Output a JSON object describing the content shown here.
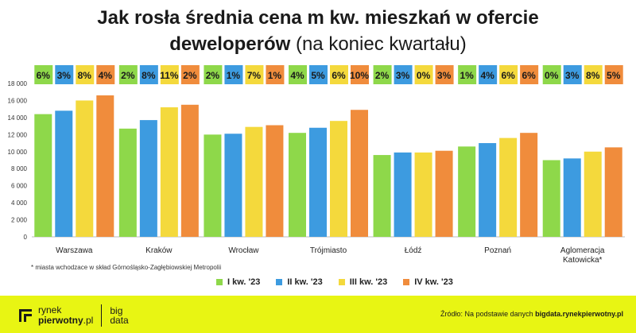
{
  "header": {
    "title_line1": "Jak rosła średnia cena m kw. mieszkań w ofercie",
    "title_line2_bold": "deweloperów",
    "title_line2_light": "(na koniec kwartału)"
  },
  "chart_data": {
    "type": "bar",
    "title": "Jak rosła średnia cena m kw. mieszkań w ofercie deweloperów (na koniec kwartału)",
    "categories": [
      "Warszawa",
      "Kraków",
      "Wrocław",
      "Trójmiasto",
      "Łódź",
      "Poznań",
      "Aglomeracja Katowicka*"
    ],
    "category_lines": [
      [
        "Warszawa"
      ],
      [
        "Kraków"
      ],
      [
        "Wrocław"
      ],
      [
        "Trójmiasto"
      ],
      [
        "Łódź"
      ],
      [
        "Poznań"
      ],
      [
        "Aglomeracja",
        "Katowicka*"
      ]
    ],
    "series": [
      {
        "name": "I kw. '23",
        "color": "#8ed84a",
        "values": [
          14400,
          12700,
          12000,
          12200,
          9600,
          10600,
          9000
        ]
      },
      {
        "name": "II kw. '23",
        "color": "#3d9be0",
        "values": [
          14800,
          13700,
          12100,
          12800,
          9900,
          11000,
          9200
        ]
      },
      {
        "name": "III kw. '23",
        "color": "#f4d93c",
        "values": [
          16000,
          15200,
          12900,
          13600,
          9900,
          11600,
          10000
        ]
      },
      {
        "name": "IV kw. '23",
        "color": "#f08c3c",
        "values": [
          16600,
          15500,
          13100,
          14900,
          10100,
          12200,
          10500
        ]
      }
    ],
    "growth_labels": [
      [
        "6%",
        "3%",
        "8%",
        "4%"
      ],
      [
        "2%",
        "8%",
        "11%",
        "2%"
      ],
      [
        "2%",
        "1%",
        "7%",
        "1%"
      ],
      [
        "4%",
        "5%",
        "6%",
        "10%"
      ],
      [
        "2%",
        "3%",
        "0%",
        "3%"
      ],
      [
        "1%",
        "4%",
        "6%",
        "6%"
      ],
      [
        "0%",
        "3%",
        "8%",
        "5%"
      ]
    ],
    "yticks": [
      "0",
      "2 000",
      "4 000",
      "6 000",
      "8 000",
      "10 000",
      "12 000",
      "14 000",
      "16 000",
      "18 000"
    ],
    "ylim": [
      0,
      18000
    ],
    "grid": false,
    "legend_position": "bottom"
  },
  "footnote": "* miasta wchodzace w skład Górnośląsko-Zagłębiowskiej Metropolii",
  "footer": {
    "logo_line1": "rynek",
    "logo_line2_bold": "pierwotny",
    "logo_line2_light": ".pl",
    "bigdata_line1": "big",
    "bigdata_line2": "data",
    "source_prefix": "Źródło: Na podstawie danych",
    "source_bold": "bigdata.rynekpierwotny.pl"
  }
}
